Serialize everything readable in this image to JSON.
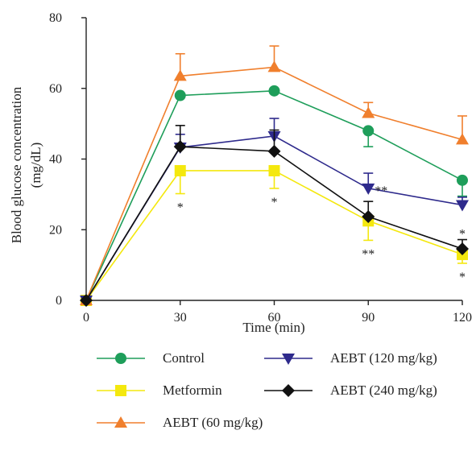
{
  "chart_data": {
    "type": "line",
    "xlabel": "Time (min)",
    "ylabel_line1": "Blood glucose concentration",
    "ylabel_line2": "(mg/dL)",
    "x": [
      0,
      30,
      60,
      90,
      120
    ],
    "x_ticks": [
      "0",
      "30",
      "60",
      "90",
      "120"
    ],
    "y_ticks": [
      "0",
      "20",
      "40",
      "60",
      "80"
    ],
    "xlim": [
      0,
      120
    ],
    "ylim": [
      0,
      80
    ],
    "series": [
      {
        "name": "Control",
        "color": "#1e9e5a",
        "marker": "circle",
        "values": [
          0,
          58,
          59.3,
          48,
          34
        ],
        "err": [
          0,
          0,
          0,
          4.5,
          4.5
        ],
        "err_dir": -1,
        "annotations": [
          "",
          "",
          "",
          "",
          ""
        ]
      },
      {
        "name": "Metformin",
        "color": "#f4e80e",
        "marker": "square",
        "values": [
          0,
          36.7,
          36.7,
          22.5,
          13
        ],
        "err": [
          0,
          6.5,
          5,
          5.5,
          2.5
        ],
        "err_dir": -1,
        "annotations": [
          "",
          "*",
          "*",
          "**",
          "*"
        ]
      },
      {
        "name": "AEBT (60 mg/kg)",
        "color": "#f07f2d",
        "marker": "triangle-up",
        "values": [
          0,
          63.5,
          66,
          53,
          45.5
        ],
        "err": [
          0,
          6.3,
          6,
          3,
          6.7
        ],
        "err_dir": 1,
        "annotations": [
          "",
          "",
          "",
          "",
          ""
        ]
      },
      {
        "name": "AEBT (120 mg/kg)",
        "color": "#2e2a8c",
        "marker": "triangle-down",
        "values": [
          0,
          43.3,
          46.5,
          31.7,
          27
        ],
        "err": [
          0,
          3.7,
          5,
          4.3,
          2.2
        ],
        "err_dir": 1,
        "annotations": [
          "",
          "",
          "",
          "**",
          ""
        ]
      },
      {
        "name": "AEBT (240 mg/kg)",
        "color": "#111111",
        "marker": "diamond",
        "values": [
          0,
          43.5,
          42.2,
          23.7,
          14.6
        ],
        "err": [
          0,
          6,
          6,
          4.3,
          2.6
        ],
        "err_dir": 1,
        "annotations": [
          "",
          "",
          "",
          "",
          "*"
        ]
      }
    ]
  }
}
